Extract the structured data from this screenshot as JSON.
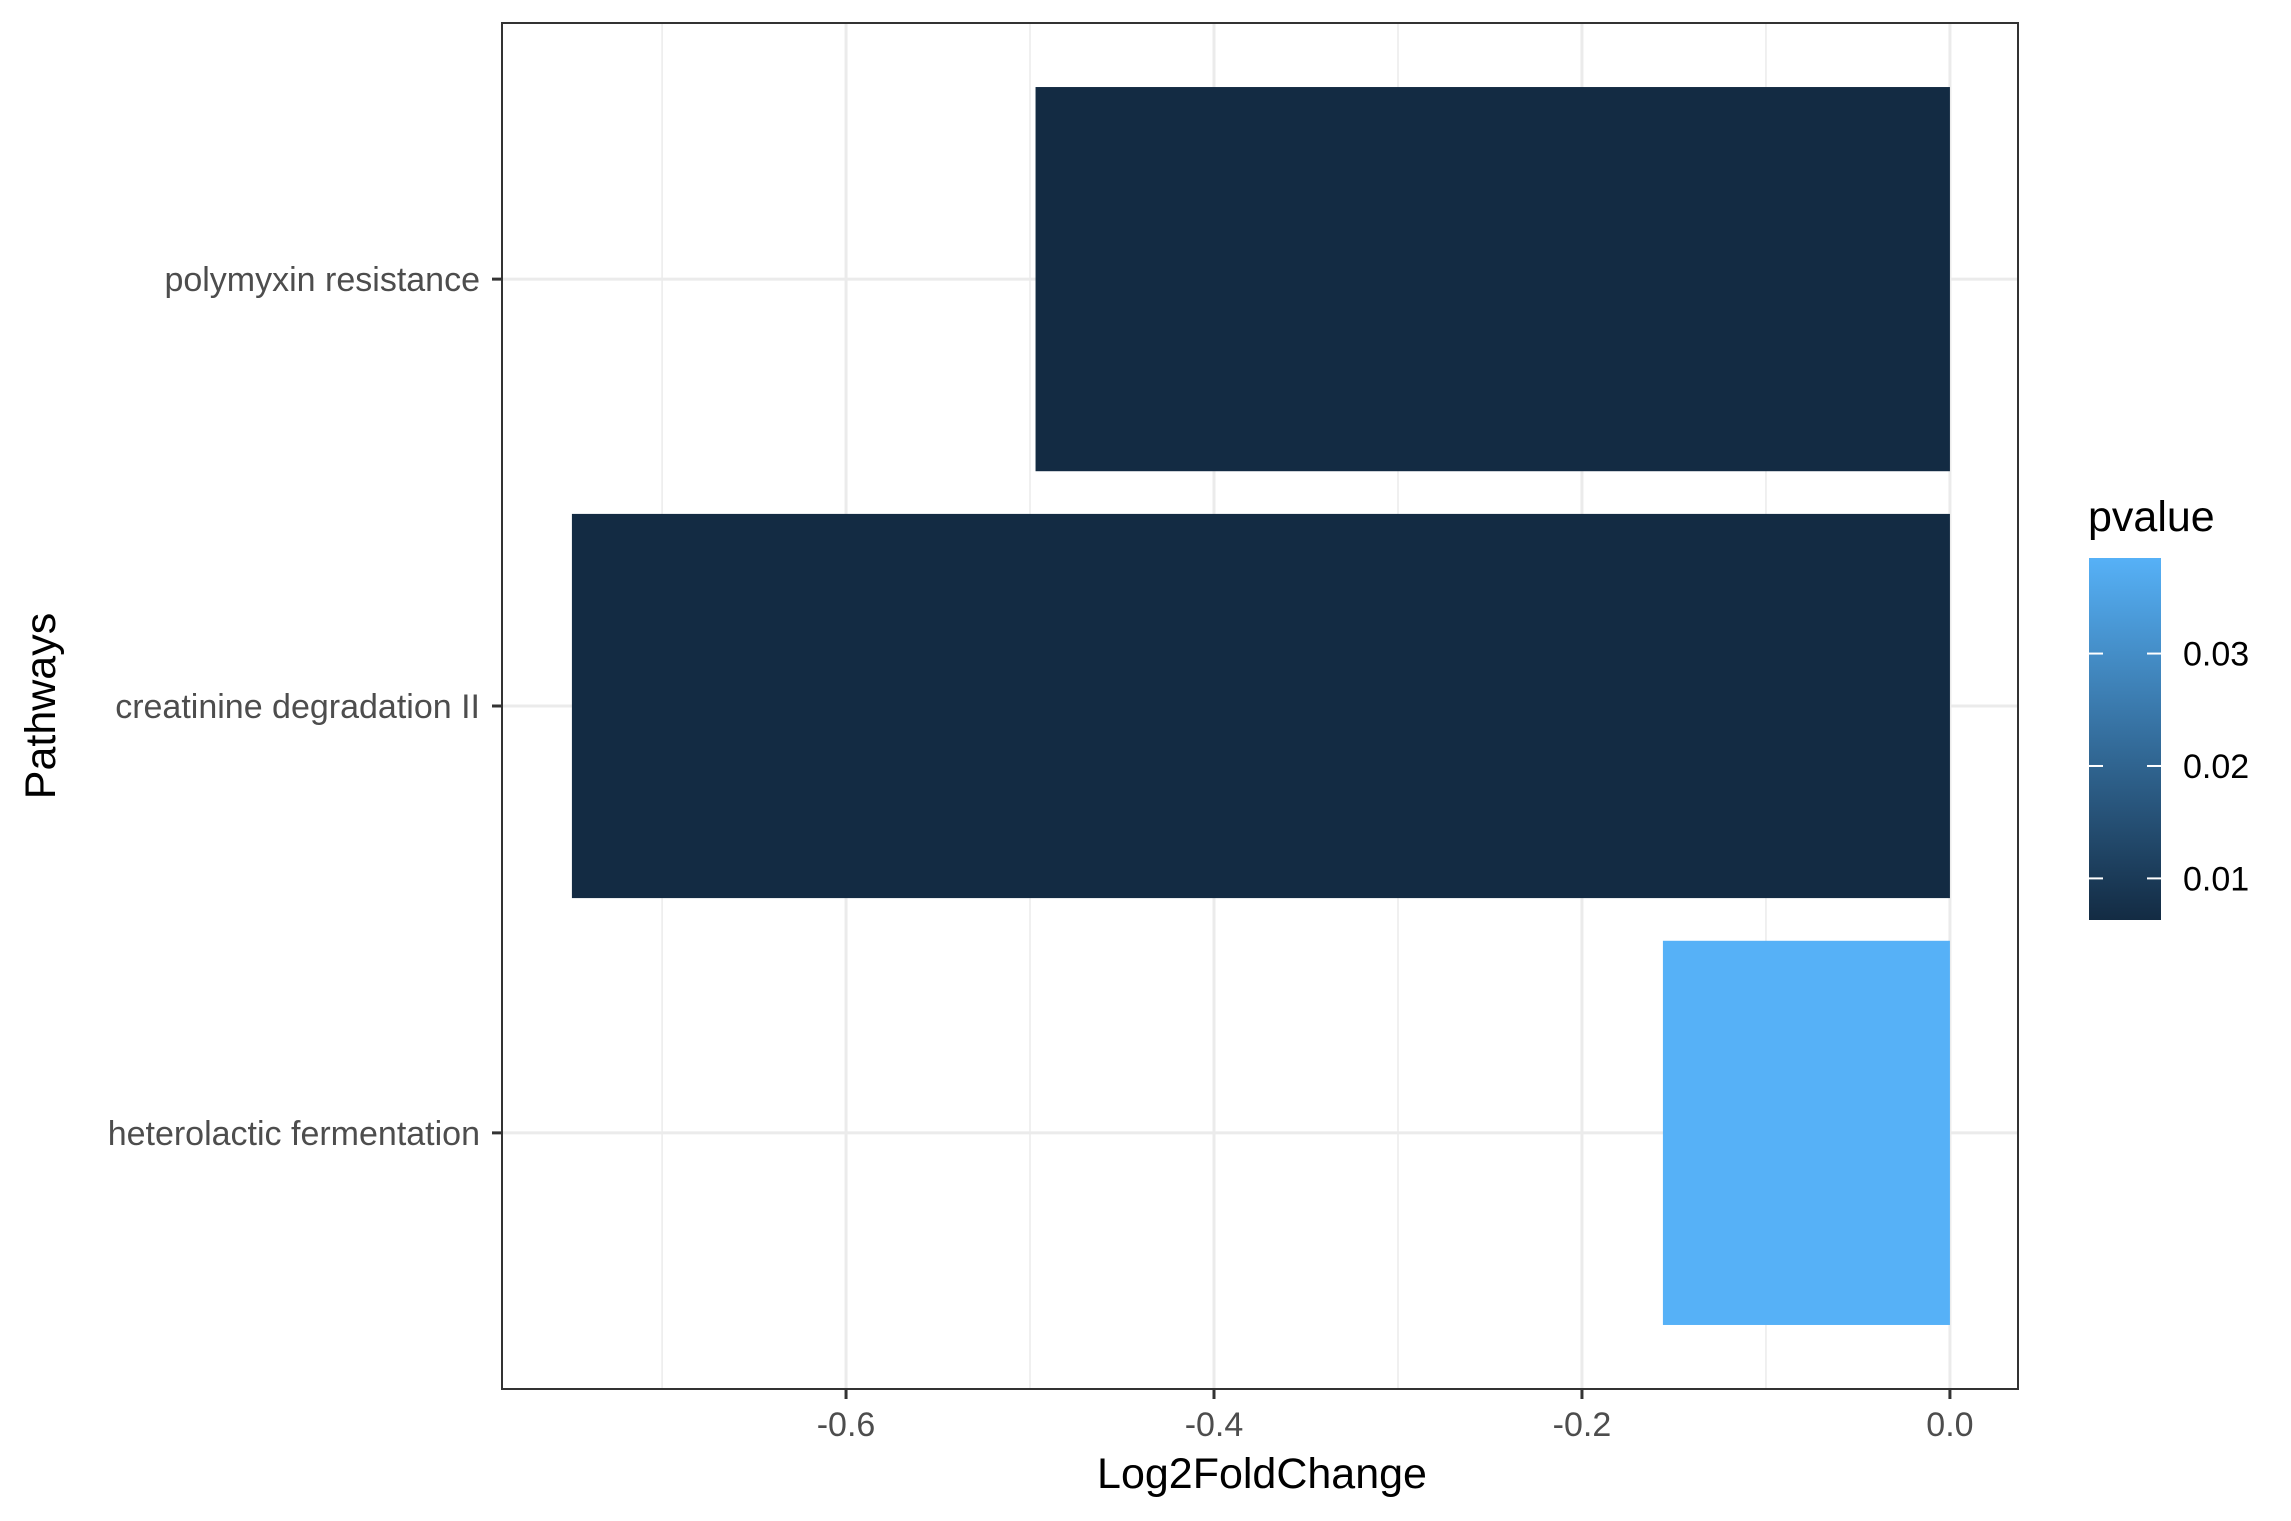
{
  "chart_data": {
    "type": "bar",
    "orientation": "horizontal",
    "title": "",
    "xlabel": "Log2FoldChange",
    "ylabel": "Pathways",
    "categories": [
      "polymyxin resistance",
      "creatinine degradation II",
      "heterolactic fermentation"
    ],
    "values": [
      -0.497,
      -0.749,
      -0.156
    ],
    "pvalues": [
      0.0063,
      0.0063,
      0.0385
    ],
    "xlim": [
      -0.787,
      0.037
    ],
    "xticks": [
      -0.6,
      -0.4,
      -0.2,
      0.0
    ],
    "xtick_labels": [
      "-0.6",
      "-0.4",
      "-0.2",
      "0.0"
    ],
    "grid": true,
    "legend": {
      "title": "pvalue",
      "position": "right",
      "range": [
        0.0063,
        0.0385
      ],
      "ticks": [
        0.01,
        0.02,
        0.03
      ],
      "tick_labels": [
        "0.01",
        "0.02",
        "0.03"
      ],
      "color_low": "#132B43",
      "color_high": "#56B1F7"
    }
  }
}
